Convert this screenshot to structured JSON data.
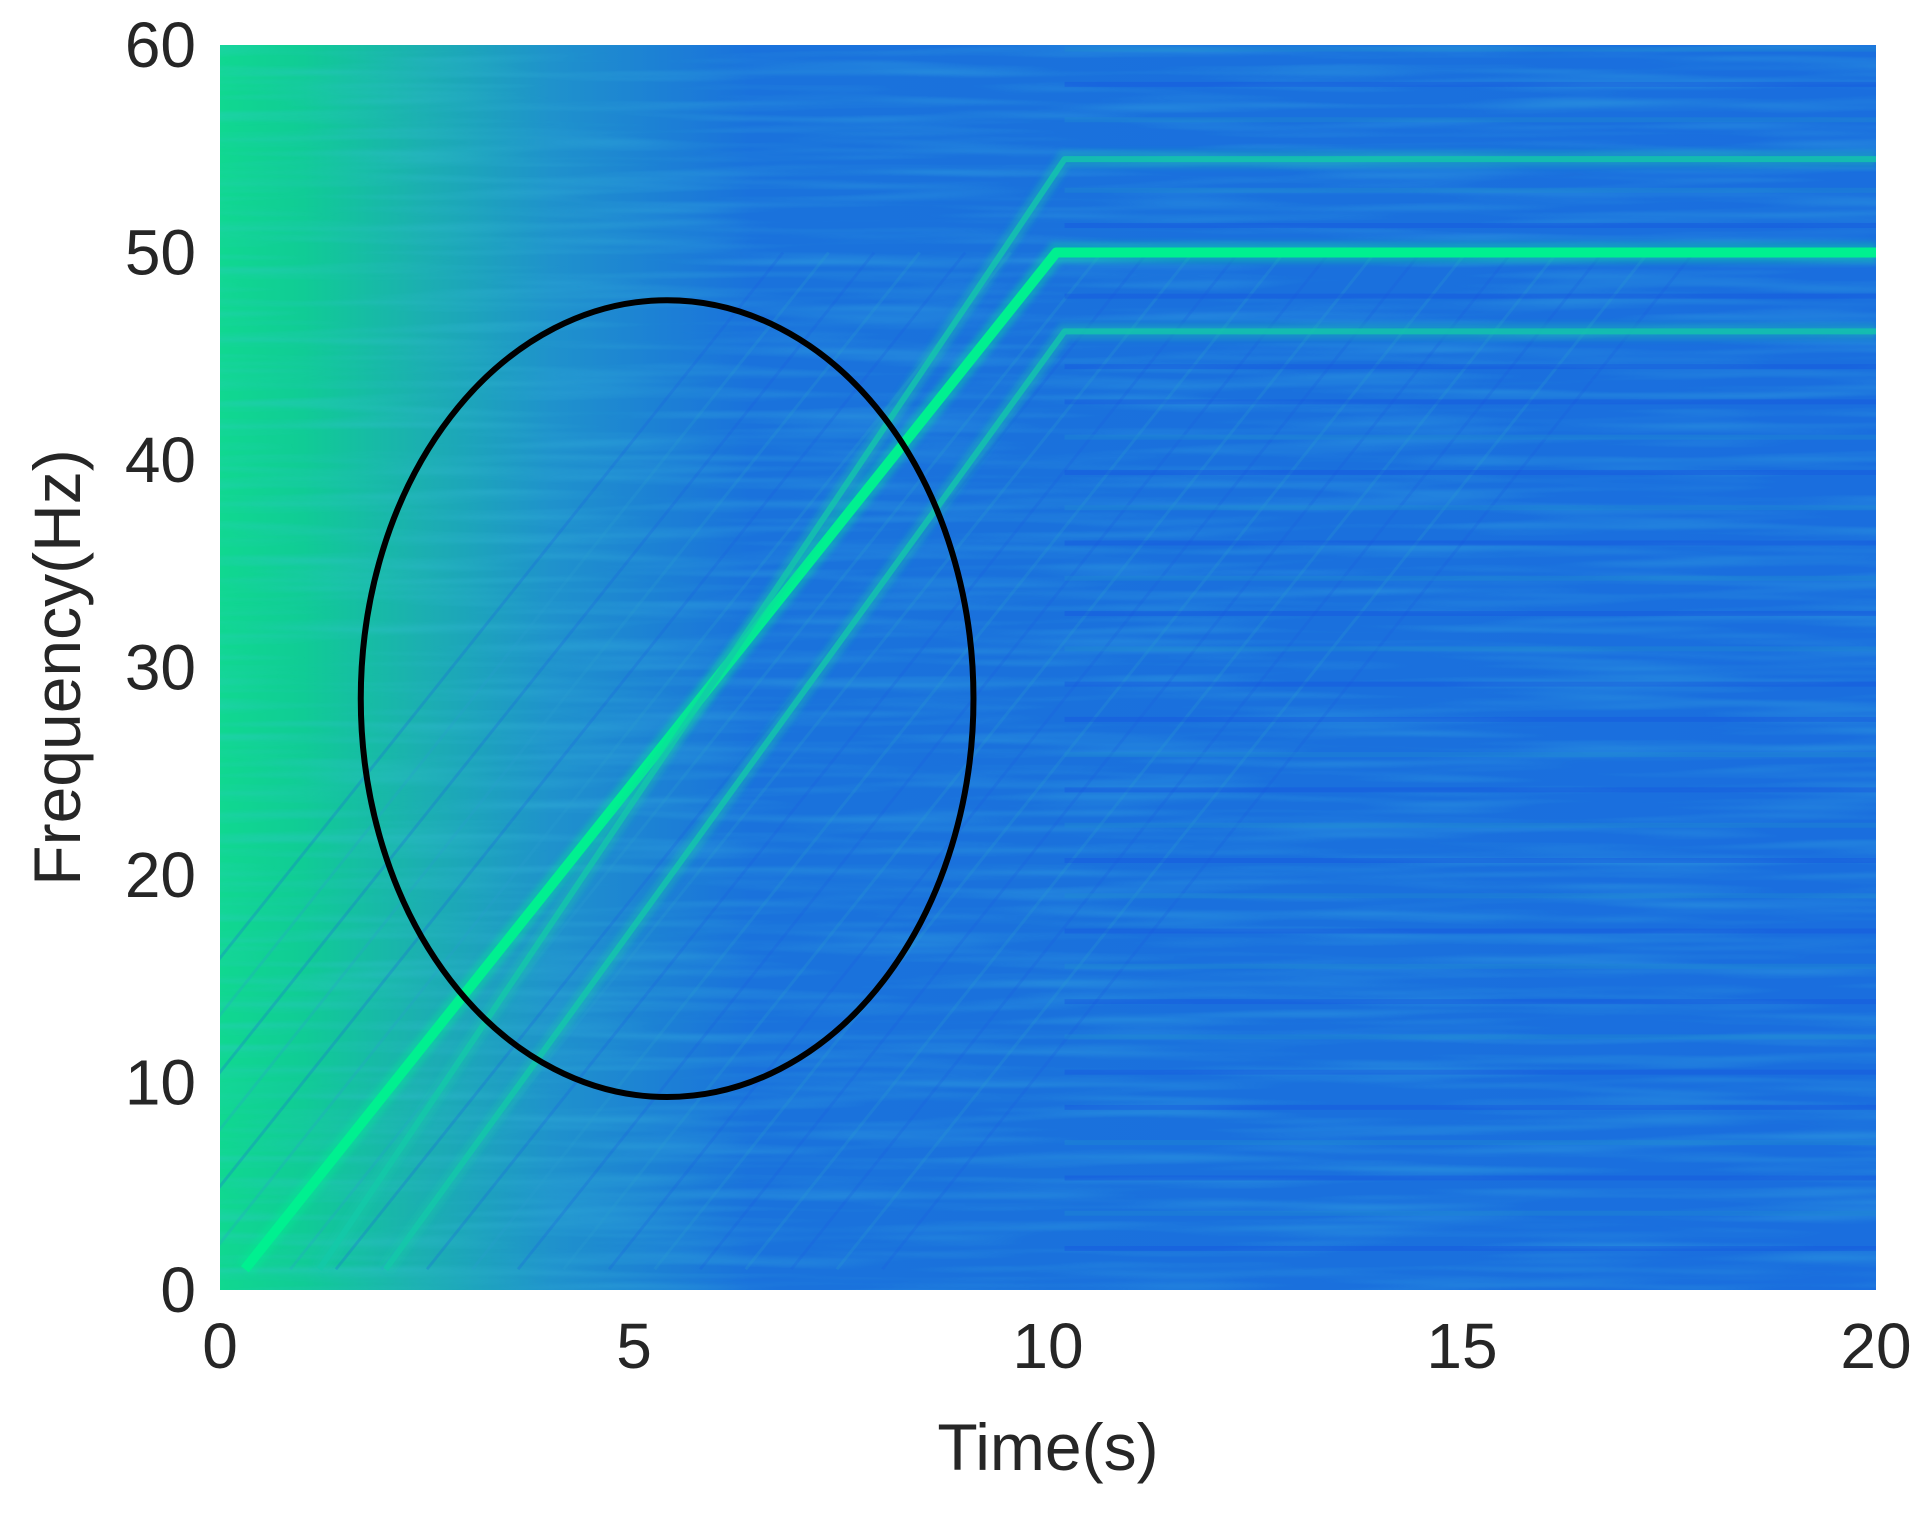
{
  "chart_data": {
    "type": "heatmap",
    "title": "",
    "xlabel": "Time(s)",
    "ylabel": "Frequency(Hz)",
    "xlim": [
      0,
      20
    ],
    "ylim": [
      0,
      60
    ],
    "x_ticks": [
      "0",
      "5",
      "10",
      "15",
      "20"
    ],
    "y_ticks": [
      "0",
      "10",
      "20",
      "30",
      "40",
      "50",
      "60"
    ],
    "x_tick_values": [
      0,
      5,
      10,
      15,
      20
    ],
    "y_tick_values": [
      0,
      10,
      20,
      30,
      40,
      50,
      60
    ],
    "colormap": {
      "low": "#1565e8",
      "mid": "#1f8fd0",
      "high": "#00f08c"
    },
    "series": [
      {
        "role": "dominant ridge",
        "points": [
          [
            0.3,
            1
          ],
          [
            10.1,
            50
          ],
          [
            20,
            50
          ]
        ],
        "color": "#00f090"
      },
      {
        "role": "harmonic upper",
        "points": [
          [
            1.2,
            1
          ],
          [
            10.2,
            54.5
          ],
          [
            20,
            54.5
          ]
        ],
        "color": "#13c9a8"
      },
      {
        "role": "harmonic lower",
        "points": [
          [
            2.0,
            1
          ],
          [
            10.2,
            46.2
          ],
          [
            20,
            46.2
          ]
        ],
        "color": "#13c9a8"
      }
    ],
    "grid": false,
    "annotations": [
      {
        "shape": "ellipse",
        "center": [
          5.4,
          28.5
        ],
        "radii": [
          3.7,
          19.2
        ],
        "color": "#000000"
      }
    ]
  }
}
